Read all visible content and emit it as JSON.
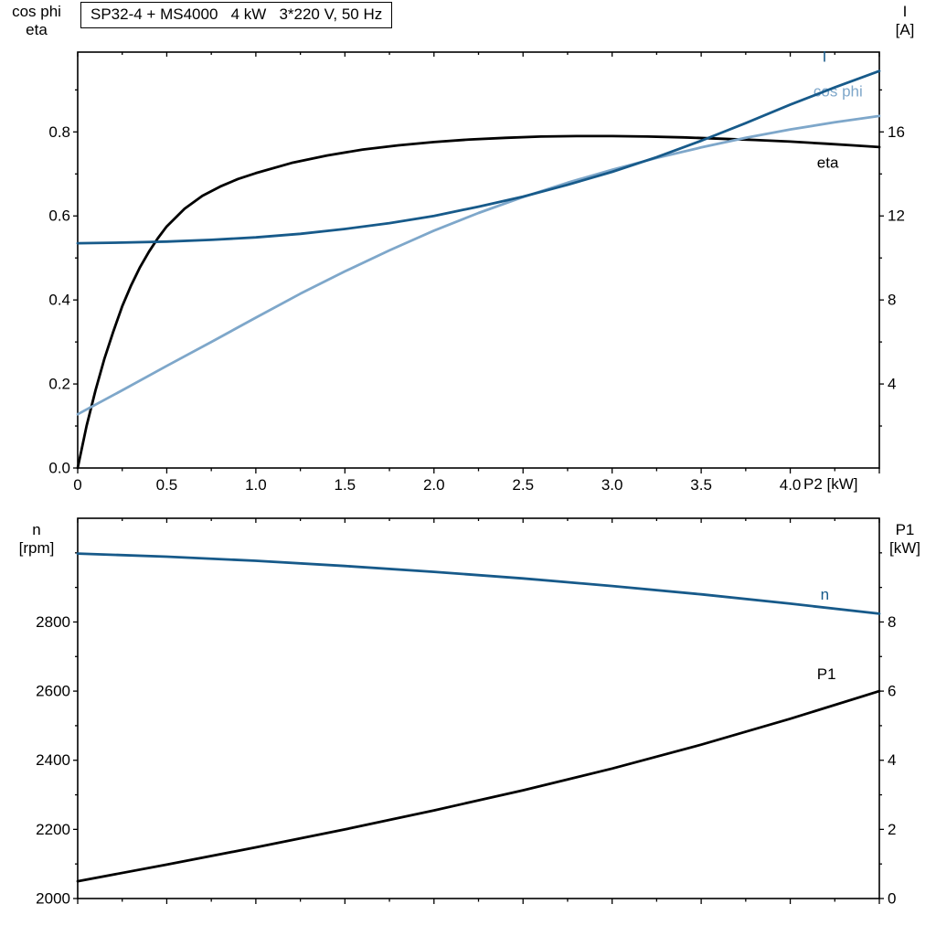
{
  "colors": {
    "dark_blue": "#175a8a",
    "light_blue": "#7ea7ca",
    "black": "#000000",
    "background": "#ffffff"
  },
  "chart_data": [
    {
      "type": "line",
      "title": "SP32-4 + MS4000   4 kW   3*220 V, 50 Hz",
      "grid": false,
      "x_axis": {
        "label": "P2 [kW]",
        "range": [
          0,
          4.5
        ],
        "major_ticks": [
          0,
          0.5,
          1.0,
          1.5,
          2.0,
          2.5,
          3.0,
          3.5,
          4.0,
          4.5
        ],
        "tick_labels": [
          "0",
          "0.5",
          "1.0",
          "1.5",
          "2.0",
          "2.5",
          "3.0",
          "3.5",
          "4.0",
          ""
        ],
        "minor_step": 0.25
      },
      "left_axis": {
        "label_lines": [
          "cos phi",
          "eta"
        ],
        "range": [
          0,
          0.99
        ],
        "major_ticks": [
          0,
          0.2,
          0.4,
          0.6,
          0.8
        ],
        "tick_labels": [
          "0.0",
          "0.2",
          "0.4",
          "0.6",
          "0.8"
        ],
        "minor_step": 0.1
      },
      "right_axis": {
        "label_lines": [
          "I",
          "[A]"
        ],
        "range": [
          0,
          19.8
        ],
        "major_ticks": [
          4,
          8,
          12,
          16
        ],
        "tick_labels": [
          "4",
          "8",
          "12",
          "16"
        ],
        "minor_step": 2
      },
      "series": [
        {
          "name": "eta",
          "label": "eta",
          "axis": "left",
          "color": "#000000",
          "label_pos": [
            4.15,
            0.715
          ],
          "points": [
            [
              0,
              0
            ],
            [
              0.05,
              0.1
            ],
            [
              0.1,
              0.185
            ],
            [
              0.15,
              0.26
            ],
            [
              0.2,
              0.325
            ],
            [
              0.25,
              0.385
            ],
            [
              0.3,
              0.435
            ],
            [
              0.35,
              0.478
            ],
            [
              0.4,
              0.515
            ],
            [
              0.45,
              0.547
            ],
            [
              0.5,
              0.575
            ],
            [
              0.6,
              0.617
            ],
            [
              0.7,
              0.648
            ],
            [
              0.8,
              0.67
            ],
            [
              0.9,
              0.688
            ],
            [
              1.0,
              0.702
            ],
            [
              1.2,
              0.726
            ],
            [
              1.4,
              0.744
            ],
            [
              1.6,
              0.758
            ],
            [
              1.8,
              0.768
            ],
            [
              2.0,
              0.776
            ],
            [
              2.2,
              0.782
            ],
            [
              2.4,
              0.786
            ],
            [
              2.6,
              0.789
            ],
            [
              2.8,
              0.79
            ],
            [
              3.0,
              0.79
            ],
            [
              3.2,
              0.789
            ],
            [
              3.4,
              0.787
            ],
            [
              3.6,
              0.784
            ],
            [
              3.8,
              0.781
            ],
            [
              4.0,
              0.777
            ],
            [
              4.2,
              0.772
            ],
            [
              4.35,
              0.768
            ],
            [
              4.5,
              0.764
            ]
          ]
        },
        {
          "name": "cos-phi",
          "label": "cos phi",
          "axis": "left",
          "color": "#7ea7ca",
          "label_pos": [
            4.13,
            0.885
          ],
          "points": [
            [
              0,
              0.128
            ],
            [
              0.25,
              0.185
            ],
            [
              0.5,
              0.243
            ],
            [
              0.75,
              0.3
            ],
            [
              1.0,
              0.358
            ],
            [
              1.25,
              0.415
            ],
            [
              1.5,
              0.468
            ],
            [
              1.75,
              0.518
            ],
            [
              2.0,
              0.565
            ],
            [
              2.25,
              0.607
            ],
            [
              2.5,
              0.645
            ],
            [
              2.75,
              0.679
            ],
            [
              3.0,
              0.71
            ],
            [
              3.25,
              0.738
            ],
            [
              3.5,
              0.763
            ],
            [
              3.75,
              0.786
            ],
            [
              4.0,
              0.806
            ],
            [
              4.25,
              0.823
            ],
            [
              4.5,
              0.838
            ]
          ]
        },
        {
          "name": "current",
          "label": "I",
          "axis": "right",
          "color": "#175a8a",
          "label_pos": [
            4.18,
            19.35
          ],
          "points": [
            [
              0,
              10.7
            ],
            [
              0.25,
              10.73
            ],
            [
              0.5,
              10.78
            ],
            [
              0.75,
              10.86
            ],
            [
              1.0,
              10.98
            ],
            [
              1.25,
              11.15
            ],
            [
              1.5,
              11.38
            ],
            [
              1.75,
              11.66
            ],
            [
              2.0,
              12.0
            ],
            [
              2.25,
              12.44
            ],
            [
              2.5,
              12.92
            ],
            [
              2.75,
              13.48
            ],
            [
              3.0,
              14.1
            ],
            [
              3.25,
              14.8
            ],
            [
              3.5,
              15.58
            ],
            [
              3.75,
              16.42
            ],
            [
              4.0,
              17.3
            ],
            [
              4.25,
              18.12
            ],
            [
              4.5,
              18.9
            ]
          ]
        }
      ]
    },
    {
      "type": "line",
      "title": "",
      "grid": false,
      "x_axis": {
        "label": "",
        "range": [
          0,
          4.5
        ],
        "major_ticks": [
          0,
          0.5,
          1.0,
          1.5,
          2.0,
          2.5,
          3.0,
          3.5,
          4.0,
          4.5
        ],
        "tick_labels": [
          "",
          "",
          "",
          "",
          "",
          "",
          "",
          "",
          "",
          ""
        ],
        "minor_step": 0.25
      },
      "left_axis": {
        "label_lines": [
          "n",
          "[rpm]"
        ],
        "range": [
          2000,
          3100
        ],
        "major_ticks": [
          2000,
          2200,
          2400,
          2600,
          2800
        ],
        "tick_labels": [
          "2000",
          "2200",
          "2400",
          "2600",
          "2800"
        ],
        "minor_step": 100
      },
      "right_axis": {
        "label_lines": [
          "P1",
          "[kW]"
        ],
        "range": [
          0,
          11
        ],
        "major_ticks": [
          0,
          2,
          4,
          6,
          8
        ],
        "tick_labels": [
          "0",
          "2",
          "4",
          "6",
          "8"
        ],
        "minor_step": 1
      },
      "series": [
        {
          "name": "speed",
          "label": "n",
          "axis": "left",
          "color": "#175a8a",
          "label_pos": [
            4.17,
            2865
          ],
          "points": [
            [
              0,
              2998
            ],
            [
              0.5,
              2989
            ],
            [
              1.0,
              2977
            ],
            [
              1.5,
              2962
            ],
            [
              2.0,
              2945
            ],
            [
              2.5,
              2926
            ],
            [
              3.0,
              2904
            ],
            [
              3.5,
              2880
            ],
            [
              4.0,
              2853
            ],
            [
              4.5,
              2824
            ]
          ]
        },
        {
          "name": "p1-power",
          "label": "P1",
          "axis": "right",
          "color": "#000000",
          "label_pos": [
            4.15,
            6.35
          ],
          "points": [
            [
              0,
              0.5
            ],
            [
              0.5,
              0.98
            ],
            [
              1.0,
              1.48
            ],
            [
              1.5,
              2.0
            ],
            [
              2.0,
              2.55
            ],
            [
              2.5,
              3.13
            ],
            [
              3.0,
              3.76
            ],
            [
              3.5,
              4.45
            ],
            [
              4.0,
              5.2
            ],
            [
              4.5,
              6.0
            ]
          ]
        }
      ]
    }
  ]
}
